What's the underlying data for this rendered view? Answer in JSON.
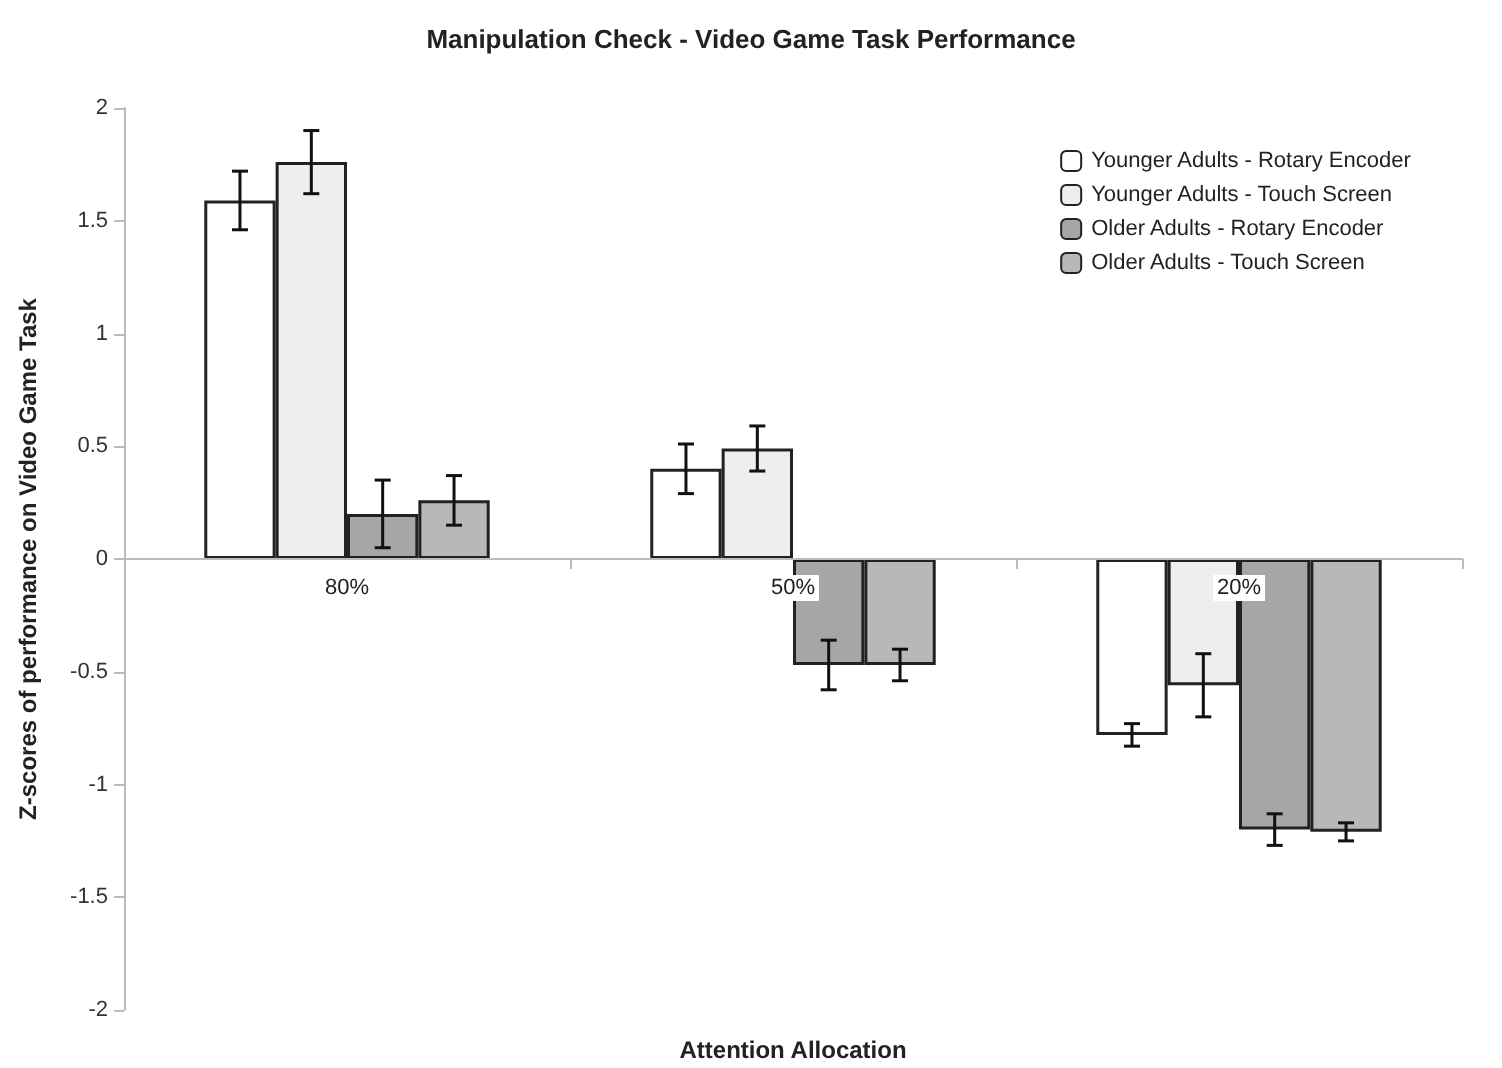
{
  "chart_data": {
    "type": "bar",
    "title": "Manipulation Check - Video Game Task Performance",
    "xlabel": "Attention Allocation",
    "ylabel": "Z-scores of performance on Video Game Task",
    "categories": [
      "80%",
      "50%",
      "20%"
    ],
    "series": [
      {
        "name": "Younger Adults - Rotary Encoder",
        "color": "#ffffff",
        "values": [
          1.59,
          0.4,
          -0.78
        ],
        "errors": [
          0.13,
          0.11,
          0.05
        ]
      },
      {
        "name": "Younger Adults - Touch Screen",
        "color": "#eeeeee",
        "values": [
          1.76,
          0.49,
          -0.56
        ],
        "errors": [
          0.14,
          0.1,
          0.14
        ]
      },
      {
        "name": "Older Adults - Rotary Encoder",
        "color": "#a6a6a6",
        "values": [
          0.2,
          -0.47,
          -1.2
        ],
        "errors": [
          0.15,
          0.11,
          0.07
        ]
      },
      {
        "name": "Older Adults - Touch Screen",
        "color": "#b8b8b8",
        "values": [
          0.26,
          -0.47,
          -1.21
        ],
        "errors": [
          0.11,
          0.07,
          0.04
        ]
      }
    ],
    "ylim": [
      -2,
      2
    ],
    "yticks": [
      -2,
      -1.5,
      -1,
      -0.5,
      0,
      0.5,
      1,
      1.5,
      2
    ],
    "grid": false,
    "legend": "top right"
  }
}
